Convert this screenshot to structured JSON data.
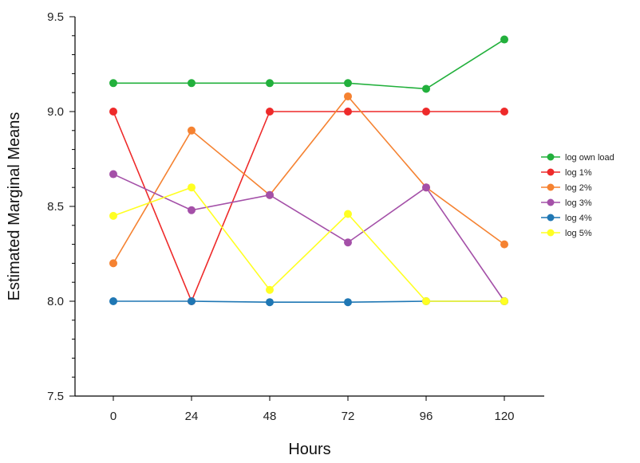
{
  "chart_data": {
    "type": "line",
    "title": "",
    "xlabel": "Hours",
    "ylabel": "Estimated Marginal Means",
    "x": [
      0,
      24,
      48,
      72,
      96,
      120
    ],
    "x_tick_labels": [
      "0",
      "24",
      "48",
      "72",
      "96",
      "120"
    ],
    "ylim": [
      7.5,
      9.5
    ],
    "y_ticks": [
      7.5,
      8.0,
      8.5,
      9.0,
      9.5
    ],
    "y_tick_labels": [
      "7.5",
      "8.0",
      "8.5",
      "9.0",
      "9.5"
    ],
    "legend_position": "right",
    "grid": false,
    "series": [
      {
        "name": "log own load",
        "color": "#22b03c",
        "values": [
          9.15,
          9.15,
          9.15,
          9.15,
          9.12,
          9.38
        ]
      },
      {
        "name": "log 1%",
        "color": "#ee2a2a",
        "values": [
          9.0,
          8.0,
          9.0,
          9.0,
          9.0,
          9.0
        ]
      },
      {
        "name": "log  2%",
        "color": "#f58231",
        "values": [
          8.2,
          8.9,
          8.56,
          9.08,
          8.6,
          8.3
        ]
      },
      {
        "name": "log 3%",
        "color": "#a450a8",
        "values": [
          8.67,
          8.48,
          8.56,
          8.31,
          8.6,
          8.0
        ]
      },
      {
        "name": "log  4%",
        "color": "#1f77b4",
        "values": [
          8.0,
          8.0,
          7.995,
          7.995,
          8.0,
          8.0
        ]
      },
      {
        "name": "log 5%",
        "color": "#ffff22",
        "values": [
          8.45,
          8.6,
          8.06,
          8.46,
          8.0,
          8.0
        ]
      }
    ]
  }
}
